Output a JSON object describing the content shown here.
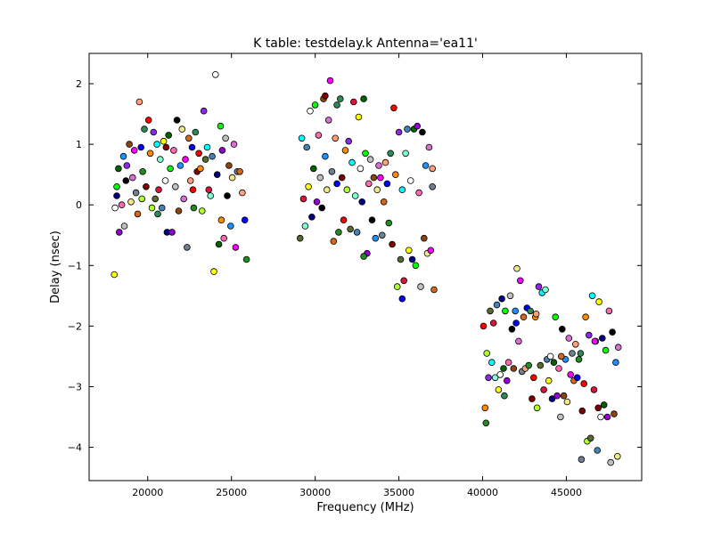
{
  "chart_data": {
    "type": "scatter",
    "title": "K table: testdelay.k       Antenna='ea11'",
    "xlabel": "Frequency (MHz)",
    "ylabel": "Delay (nsec)",
    "xlim": [
      16500,
      49500
    ],
    "ylim": [
      -4.55,
      2.5
    ],
    "xticks": [
      20000,
      25000,
      30000,
      35000,
      40000,
      45000
    ],
    "xtick_labels": [
      "20000",
      "25000",
      "30000",
      "35000",
      "40000",
      "45000"
    ],
    "yticks": [
      -4,
      -3,
      -2,
      -1,
      0,
      1,
      2
    ],
    "ytick_labels": [
      "−4",
      "−3",
      "−2",
      "−1",
      "0",
      "1",
      "2"
    ],
    "grid": false,
    "legend": "none",
    "marker": "circle",
    "palette": [
      "#ff0000",
      "#00ff00",
      "#0000ff",
      "#ffff00",
      "#ff00ff",
      "#00ffff",
      "#8b4513",
      "#ff8c00",
      "#9400d3",
      "#228b22",
      "#ffffff",
      "#708090",
      "#dc143c",
      "#1e90ff",
      "#adff2f",
      "#ff69b4",
      "#2e8b57",
      "#000080",
      "#d2691e",
      "#7fffd4",
      "#f0e68c",
      "#8a2be2",
      "#c0c0c0",
      "#800000",
      "#006400",
      "#ffa07a",
      "#4682b4",
      "#da70d6",
      "#556b2f",
      "#000000"
    ],
    "points": [
      [
        18000,
        -1.15
      ],
      [
        18050,
        -0.05
      ],
      [
        18150,
        0.15
      ],
      [
        18250,
        0.6
      ],
      [
        18150,
        0.3
      ],
      [
        18300,
        -0.45
      ],
      [
        18450,
        0.0
      ],
      [
        18600,
        -0.35
      ],
      [
        18700,
        0.4
      ],
      [
        18900,
        1.0
      ],
      [
        18550,
        0.8
      ],
      [
        19000,
        0.05
      ],
      [
        19100,
        0.45
      ],
      [
        19200,
        0.9
      ],
      [
        19300,
        0.2
      ],
      [
        19400,
        -0.15
      ],
      [
        19500,
        1.7
      ],
      [
        19600,
        0.95
      ],
      [
        19700,
        0.55
      ],
      [
        19800,
        1.25
      ],
      [
        19900,
        0.3
      ],
      [
        20050,
        1.4
      ],
      [
        20150,
        0.85
      ],
      [
        20250,
        -0.05
      ],
      [
        20350,
        1.2
      ],
      [
        20450,
        0.1
      ],
      [
        20550,
        1.0
      ],
      [
        20650,
        0.25
      ],
      [
        20750,
        0.75
      ],
      [
        20850,
        -0.05
      ],
      [
        20950,
        1.05
      ],
      [
        21050,
        0.4
      ],
      [
        21150,
        -0.45
      ],
      [
        21250,
        1.15
      ],
      [
        21350,
        0.6
      ],
      [
        21450,
        -0.45
      ],
      [
        21550,
        0.9
      ],
      [
        21650,
        0.3
      ],
      [
        21750,
        1.4
      ],
      [
        21850,
        -0.1
      ],
      [
        21950,
        0.65
      ],
      [
        22050,
        1.25
      ],
      [
        22150,
        0.1
      ],
      [
        22250,
        0.75
      ],
      [
        22350,
        -0.7
      ],
      [
        22450,
        1.1
      ],
      [
        22550,
        0.4
      ],
      [
        22650,
        0.95
      ],
      [
        22750,
        -0.05
      ],
      [
        22850,
        1.2
      ],
      [
        22950,
        0.55
      ],
      [
        23050,
        0.85
      ],
      [
        23150,
        0.6
      ],
      [
        23250,
        -0.1
      ],
      [
        23350,
        1.55
      ],
      [
        23450,
        0.75
      ],
      [
        23550,
        0.95
      ],
      [
        23650,
        0.25
      ],
      [
        23750,
        0.15
      ],
      [
        23850,
        0.8
      ],
      [
        23950,
        -1.1
      ],
      [
        24050,
        2.15
      ],
      [
        24150,
        0.5
      ],
      [
        24250,
        -0.65
      ],
      [
        24350,
        1.3
      ],
      [
        24450,
        0.9
      ],
      [
        24550,
        -0.55
      ],
      [
        24650,
        1.1
      ],
      [
        24750,
        0.15
      ],
      [
        24850,
        0.65
      ],
      [
        24950,
        -0.35
      ],
      [
        25050,
        0.45
      ],
      [
        25150,
        1.0
      ],
      [
        25250,
        -0.7
      ],
      [
        25350,
        0.55
      ],
      [
        25500,
        0.55
      ],
      [
        25650,
        0.2
      ],
      [
        25800,
        -0.25
      ],
      [
        25900,
        -0.9
      ],
      [
        20600,
        -0.15
      ],
      [
        21100,
        0.95
      ],
      [
        22700,
        0.25
      ],
      [
        24400,
        -0.25
      ],
      [
        19650,
        0.1
      ],
      [
        18750,
        0.65
      ],
      [
        29100,
        -0.55
      ],
      [
        29200,
        1.1
      ],
      [
        29300,
        0.1
      ],
      [
        29400,
        -0.35
      ],
      [
        29500,
        0.95
      ],
      [
        29600,
        0.3
      ],
      [
        29700,
        1.55
      ],
      [
        29800,
        -0.2
      ],
      [
        29900,
        0.6
      ],
      [
        30000,
        1.65
      ],
      [
        30100,
        0.05
      ],
      [
        30200,
        1.15
      ],
      [
        30300,
        0.45
      ],
      [
        30400,
        -0.05
      ],
      [
        30500,
        1.75
      ],
      [
        30600,
        0.8
      ],
      [
        30700,
        0.25
      ],
      [
        30800,
        1.4
      ],
      [
        30900,
        2.05
      ],
      [
        31000,
        0.55
      ],
      [
        31100,
        -0.6
      ],
      [
        31200,
        1.1
      ],
      [
        31300,
        0.35
      ],
      [
        31400,
        -0.45
      ],
      [
        31500,
        1.75
      ],
      [
        31600,
        0.45
      ],
      [
        31700,
        -0.25
      ],
      [
        31800,
        0.9
      ],
      [
        31900,
        0.25
      ],
      [
        32000,
        1.05
      ],
      [
        32100,
        -0.4
      ],
      [
        32200,
        0.7
      ],
      [
        32300,
        1.7
      ],
      [
        32400,
        0.15
      ],
      [
        32500,
        -0.45
      ],
      [
        32600,
        1.45
      ],
      [
        32700,
        0.6
      ],
      [
        32800,
        0.05
      ],
      [
        32900,
        1.75
      ],
      [
        33000,
        0.85
      ],
      [
        33100,
        -0.8
      ],
      [
        33200,
        0.35
      ],
      [
        33300,
        0.75
      ],
      [
        33400,
        -0.25
      ],
      [
        33500,
        0.45
      ],
      [
        33600,
        -0.55
      ],
      [
        33700,
        0.25
      ],
      [
        33800,
        0.65
      ],
      [
        33900,
        0.45
      ],
      [
        34000,
        -0.5
      ],
      [
        34100,
        0.05
      ],
      [
        34200,
        0.7
      ],
      [
        34300,
        0.35
      ],
      [
        34400,
        -0.3
      ],
      [
        34500,
        0.85
      ],
      [
        34600,
        -0.65
      ],
      [
        34700,
        1.6
      ],
      [
        34800,
        0.5
      ],
      [
        34900,
        -1.35
      ],
      [
        35000,
        1.2
      ],
      [
        35100,
        -0.9
      ],
      [
        35200,
        0.25
      ],
      [
        35300,
        -1.25
      ],
      [
        35400,
        0.85
      ],
      [
        35500,
        1.25
      ],
      [
        35600,
        -0.75
      ],
      [
        35700,
        0.4
      ],
      [
        35800,
        -0.9
      ],
      [
        35900,
        1.25
      ],
      [
        36000,
        -1.0
      ],
      [
        36100,
        1.3
      ],
      [
        36200,
        0.2
      ],
      [
        36300,
        -1.35
      ],
      [
        36400,
        1.2
      ],
      [
        36500,
        -0.55
      ],
      [
        36600,
        0.65
      ],
      [
        36700,
        -0.8
      ],
      [
        36800,
        0.95
      ],
      [
        36900,
        -0.75
      ],
      [
        37000,
        0.3
      ],
      [
        37100,
        -1.4
      ],
      [
        37000,
        0.6
      ],
      [
        35200,
        -1.55
      ],
      [
        32900,
        -0.85
      ],
      [
        31300,
        1.65
      ],
      [
        30600,
        1.8
      ],
      [
        40050,
        -2.0
      ],
      [
        40150,
        -3.35
      ],
      [
        40250,
        -2.45
      ],
      [
        40350,
        -2.85
      ],
      [
        40450,
        -1.75
      ],
      [
        40550,
        -2.6
      ],
      [
        40650,
        -1.95
      ],
      [
        40750,
        -2.85
      ],
      [
        40850,
        -1.65
      ],
      [
        40950,
        -3.05
      ],
      [
        41050,
        -2.8
      ],
      [
        41150,
        -1.55
      ],
      [
        41250,
        -2.7
      ],
      [
        41350,
        -1.75
      ],
      [
        41450,
        -2.9
      ],
      [
        41550,
        -2.6
      ],
      [
        41650,
        -1.5
      ],
      [
        41750,
        -2.05
      ],
      [
        41850,
        -2.7
      ],
      [
        41950,
        -1.75
      ],
      [
        42050,
        -1.05
      ],
      [
        42150,
        -2.25
      ],
      [
        42250,
        -1.25
      ],
      [
        42350,
        -2.75
      ],
      [
        42450,
        -1.85
      ],
      [
        42550,
        -2.7
      ],
      [
        42650,
        -1.7
      ],
      [
        42750,
        -2.65
      ],
      [
        42850,
        -1.75
      ],
      [
        42950,
        -3.2
      ],
      [
        43050,
        -2.85
      ],
      [
        43150,
        -1.85
      ],
      [
        43250,
        -3.35
      ],
      [
        43350,
        -1.35
      ],
      [
        43450,
        -2.65
      ],
      [
        43550,
        -1.45
      ],
      [
        43650,
        -3.05
      ],
      [
        43750,
        -1.4
      ],
      [
        43850,
        -2.55
      ],
      [
        43950,
        -2.9
      ],
      [
        44050,
        -2.5
      ],
      [
        44150,
        -3.2
      ],
      [
        44250,
        -2.6
      ],
      [
        44350,
        -1.85
      ],
      [
        44450,
        -3.15
      ],
      [
        44550,
        -2.7
      ],
      [
        44650,
        -3.5
      ],
      [
        44750,
        -2.05
      ],
      [
        44850,
        -3.15
      ],
      [
        44950,
        -2.55
      ],
      [
        45050,
        -3.25
      ],
      [
        45150,
        -2.2
      ],
      [
        45250,
        -2.8
      ],
      [
        45350,
        -2.45
      ],
      [
        45450,
        -2.9
      ],
      [
        45550,
        -2.3
      ],
      [
        45650,
        -2.85
      ],
      [
        45750,
        -2.55
      ],
      [
        45850,
        -2.45
      ],
      [
        45950,
        -3.4
      ],
      [
        46050,
        -2.95
      ],
      [
        46150,
        -1.85
      ],
      [
        46250,
        -3.9
      ],
      [
        46350,
        -2.15
      ],
      [
        46450,
        -3.85
      ],
      [
        46550,
        -1.5
      ],
      [
        46650,
        -3.05
      ],
      [
        46750,
        -2.25
      ],
      [
        46850,
        -4.05
      ],
      [
        46950,
        -1.6
      ],
      [
        47050,
        -3.5
      ],
      [
        47150,
        -2.2
      ],
      [
        47250,
        -3.3
      ],
      [
        47350,
        -2.4
      ],
      [
        47450,
        -3.5
      ],
      [
        47550,
        -1.75
      ],
      [
        47650,
        -4.25
      ],
      [
        47750,
        -2.1
      ],
      [
        47850,
        -3.45
      ],
      [
        47950,
        -2.6
      ],
      [
        48050,
        -4.15
      ],
      [
        48100,
        -2.35
      ],
      [
        46700,
        -2.25
      ],
      [
        45900,
        -4.2
      ],
      [
        44700,
        -2.5
      ],
      [
        43200,
        -1.8
      ],
      [
        42000,
        -1.95
      ],
      [
        40200,
        -3.6
      ],
      [
        41300,
        -3.15
      ],
      [
        46900,
        -3.35
      ]
    ]
  }
}
